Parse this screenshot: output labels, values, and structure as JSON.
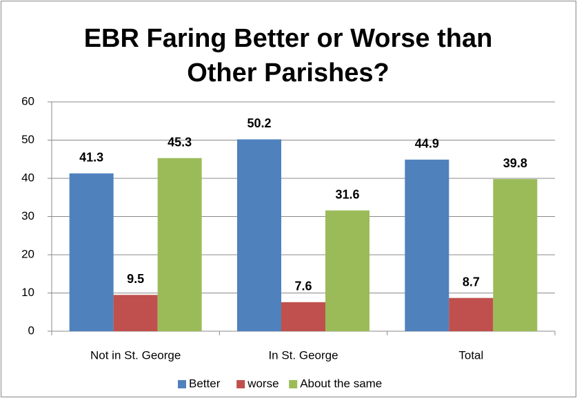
{
  "chart_data": {
    "type": "bar",
    "title_lines": [
      "EBR Faring Better or Worse than",
      "Other Parishes?"
    ],
    "categories": [
      "Not in St. George",
      "In St. George",
      "Total"
    ],
    "series": [
      {
        "name": "Better",
        "color": "#4f81bd",
        "values": [
          41.3,
          50.2,
          44.9
        ]
      },
      {
        "name": "worse",
        "color": "#c0504d",
        "values": [
          9.5,
          7.6,
          8.7
        ]
      },
      {
        "name": "About the same",
        "color": "#9bbb59",
        "values": [
          45.3,
          31.6,
          39.8
        ]
      }
    ],
    "ylim": [
      0,
      60
    ],
    "yticks": [
      0,
      10,
      20,
      30,
      40,
      50,
      60
    ],
    "grid": true,
    "legend": "bottom"
  }
}
